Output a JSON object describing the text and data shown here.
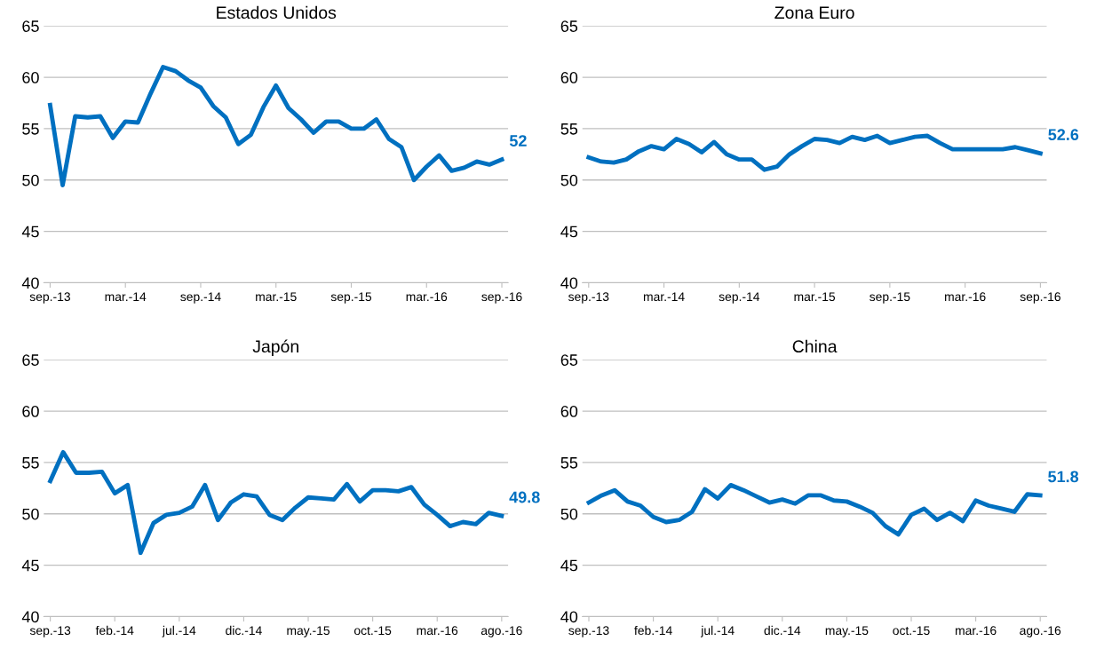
{
  "chart_data": [
    {
      "type": "line",
      "title": "Estados Unidos",
      "categories": [
        "sep.-13",
        null,
        null,
        null,
        null,
        null,
        "mar.-14",
        null,
        null,
        null,
        null,
        null,
        "sep.-14",
        null,
        null,
        null,
        null,
        null,
        "mar.-15",
        null,
        null,
        null,
        null,
        null,
        "sep.-15",
        null,
        null,
        null,
        null,
        null,
        "mar.-16",
        null,
        null,
        null,
        null,
        null,
        "sep.-16"
      ],
      "color": "#0070c0",
      "values": [
        57.3,
        49.5,
        56.2,
        56.1,
        56.2,
        54.1,
        55.7,
        55.6,
        58.4,
        61.0,
        60.6,
        59.7,
        59.0,
        57.2,
        56.1,
        53.5,
        54.4,
        57.1,
        59.2,
        57.0,
        55.9,
        54.6,
        55.7,
        55.7,
        55.0,
        55.0,
        55.9,
        54.0,
        53.2,
        50.0,
        51.3,
        52.4,
        50.9,
        51.2,
        51.8,
        51.5,
        52.0
      ],
      "value_labels": [
        null,
        null,
        null,
        null,
        null,
        null,
        null,
        null,
        null,
        null,
        null,
        null,
        null,
        null,
        null,
        null,
        null,
        null,
        null,
        null,
        null,
        null,
        null,
        null,
        null,
        null,
        null,
        null,
        null,
        null,
        null,
        null,
        null,
        null,
        null,
        null,
        "52"
      ],
      "ylim": [
        40,
        65
      ],
      "yticks": [
        40,
        45,
        50,
        55,
        60,
        65
      ],
      "grid": "y",
      "legend": false
    },
    {
      "type": "line",
      "title": "Zona Euro",
      "categories": [
        "sep.-13",
        null,
        null,
        null,
        null,
        null,
        "mar.-14",
        null,
        null,
        null,
        null,
        null,
        "sep.-14",
        null,
        null,
        null,
        null,
        null,
        "mar.-15",
        null,
        null,
        null,
        null,
        null,
        "sep.-15",
        null,
        null,
        null,
        null,
        null,
        "mar.-16",
        null,
        null,
        null,
        null,
        null,
        "sep.-16"
      ],
      "color": "#0070c0",
      "values": [
        52.2,
        51.8,
        51.7,
        52.0,
        52.8,
        53.3,
        53.0,
        54.0,
        53.5,
        52.7,
        53.7,
        52.5,
        52.0,
        52.0,
        51.0,
        51.3,
        52.5,
        53.3,
        54.0,
        53.9,
        53.6,
        54.2,
        53.9,
        54.3,
        53.6,
        53.9,
        54.2,
        54.3,
        53.6,
        53.0,
        53.0,
        53.0,
        53.0,
        53.0,
        53.2,
        52.9,
        52.6
      ],
      "value_labels": [
        null,
        null,
        null,
        null,
        null,
        null,
        null,
        null,
        null,
        null,
        null,
        null,
        null,
        null,
        null,
        null,
        null,
        null,
        null,
        null,
        null,
        null,
        null,
        null,
        null,
        null,
        null,
        null,
        null,
        null,
        null,
        null,
        null,
        null,
        null,
        null,
        "52.6"
      ],
      "ylim": [
        40,
        65
      ],
      "yticks": [
        40,
        45,
        50,
        55,
        60,
        65
      ],
      "grid": "y",
      "legend": false
    },
    {
      "type": "line",
      "title": "Japón",
      "categories": [
        "sep.-13",
        null,
        null,
        null,
        null,
        "feb.-14",
        null,
        null,
        null,
        null,
        "jul.-14",
        null,
        null,
        null,
        null,
        "dic.-14",
        null,
        null,
        null,
        null,
        "may.-15",
        null,
        null,
        null,
        null,
        "oct.-15",
        null,
        null,
        null,
        null,
        "mar.-16",
        null,
        null,
        null,
        null,
        "ago.-16"
      ],
      "color": "#0070c0",
      "values": [
        53.2,
        56.0,
        54.0,
        54.0,
        54.1,
        52.0,
        52.8,
        46.2,
        49.1,
        49.9,
        50.1,
        50.7,
        52.8,
        49.4,
        51.1,
        51.9,
        51.7,
        49.9,
        49.4,
        50.6,
        51.6,
        51.5,
        51.4,
        52.9,
        51.2,
        52.3,
        52.3,
        52.2,
        52.6,
        50.9,
        49.9,
        48.8,
        49.2,
        49.0,
        50.1,
        49.8
      ],
      "value_labels": [
        null,
        null,
        null,
        null,
        null,
        null,
        null,
        null,
        null,
        null,
        null,
        null,
        null,
        null,
        null,
        null,
        null,
        null,
        null,
        null,
        null,
        null,
        null,
        null,
        null,
        null,
        null,
        null,
        null,
        null,
        null,
        null,
        null,
        null,
        null,
        "49.8"
      ],
      "ylim": [
        40,
        65
      ],
      "yticks": [
        40,
        45,
        50,
        55,
        60,
        65
      ],
      "grid": "y",
      "legend": false
    },
    {
      "type": "line",
      "title": "China",
      "categories": [
        "sep.-13",
        null,
        null,
        null,
        null,
        "feb.-14",
        null,
        null,
        null,
        null,
        "jul.-14",
        null,
        null,
        null,
        null,
        "dic.-14",
        null,
        null,
        null,
        null,
        "may.-15",
        null,
        null,
        null,
        null,
        "oct.-15",
        null,
        null,
        null,
        null,
        "mar.-16",
        null,
        null,
        null,
        null,
        "ago.-16"
      ],
      "color": "#0070c0",
      "values": [
        51.1,
        51.8,
        52.3,
        51.2,
        50.8,
        49.7,
        49.2,
        49.4,
        50.2,
        52.4,
        51.5,
        52.8,
        52.3,
        51.7,
        51.1,
        51.4,
        51.0,
        51.8,
        51.8,
        51.3,
        51.2,
        50.7,
        50.1,
        48.8,
        48.0,
        49.9,
        50.5,
        49.4,
        50.1,
        49.3,
        51.3,
        50.8,
        50.5,
        50.2,
        51.9,
        51.8
      ],
      "value_labels": [
        null,
        null,
        null,
        null,
        null,
        null,
        null,
        null,
        null,
        null,
        null,
        null,
        null,
        null,
        null,
        null,
        null,
        null,
        null,
        null,
        null,
        null,
        null,
        null,
        null,
        null,
        null,
        null,
        null,
        null,
        null,
        null,
        null,
        null,
        null,
        "51.8"
      ],
      "ylim": [
        40,
        65
      ],
      "yticks": [
        40,
        45,
        50,
        55,
        60,
        65
      ],
      "grid": "y",
      "legend": false
    }
  ]
}
